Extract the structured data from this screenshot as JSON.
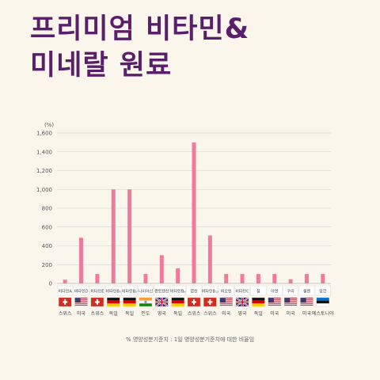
{
  "title": {
    "line1": "프리미엄 비타민&",
    "line2": "미네랄 원료"
  },
  "footnote": "% 영양성분기준치 : 1일 영양성분기준치에 대한 비율임",
  "colors": {
    "bar": "#ef7b9c",
    "grid": "#cfcfcf",
    "text": "#555555",
    "title": "#5a1f6b"
  },
  "chart_data": {
    "type": "bar",
    "unit_label": "(%)",
    "ylim": [
      0,
      1600
    ],
    "yticks": [
      0,
      200,
      400,
      600,
      800,
      1000,
      1200,
      1400,
      1600
    ],
    "ytick_labels": [
      "0",
      "200",
      "400",
      "600",
      "800",
      "1,000",
      "1,200",
      "1,400",
      "1,600"
    ],
    "grid": true,
    "categories": [
      "비타민A",
      "비타민D",
      "비타민E",
      "비타민B₁",
      "비타민B₂",
      "나이아신",
      "판토텐산",
      "비타민B₆",
      "엽산",
      "비타민B₁₂",
      "비오틴",
      "비타민C",
      "철",
      "아연",
      "구리",
      "셀렌",
      "망간"
    ],
    "values": [
      40,
      485,
      100,
      1000,
      1000,
      100,
      300,
      160,
      1500,
      510,
      100,
      100,
      100,
      100,
      45,
      100,
      100
    ],
    "countries": [
      "스위스",
      "미국",
      "스위스",
      "독일",
      "독일",
      "인도",
      "영국",
      "독일",
      "스위스",
      "스위스",
      "미국",
      "영국",
      "독일",
      "미국",
      "미국",
      "미국",
      "에스토니아"
    ],
    "flags": [
      "swiss-flag",
      "usa-flag",
      "swiss-flag",
      "germany-flag",
      "germany-flag",
      "india-flag",
      "uk-flag",
      "germany-flag",
      "swiss-flag",
      "swiss-flag",
      "usa-flag",
      "uk-flag",
      "germany-flag",
      "usa-flag",
      "usa-flag",
      "usa-flag",
      "estonia-flag"
    ]
  }
}
